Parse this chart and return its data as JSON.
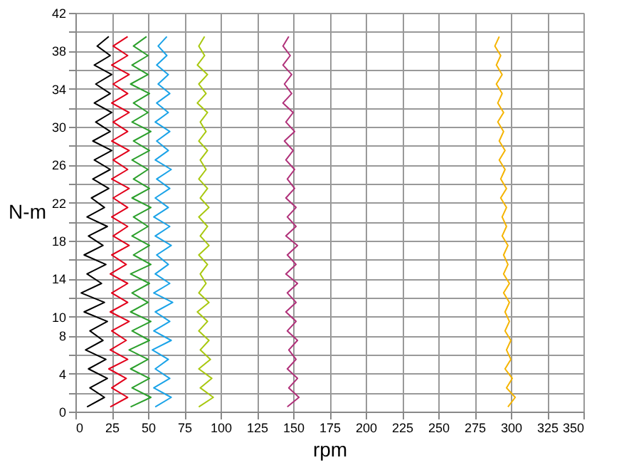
{
  "chart_data": {
    "type": "line",
    "xlabel": "rpm",
    "ylabel": "N-m",
    "xlim": [
      0,
      350
    ],
    "ylim": [
      0,
      42
    ],
    "xticks": [
      0,
      25,
      50,
      75,
      100,
      125,
      150,
      175,
      200,
      225,
      250,
      275,
      300,
      325,
      350
    ],
    "yticks": [
      0,
      {
        "value": 2,
        "label": null
      },
      4,
      {
        "value": 6,
        "label": null
      },
      8,
      10,
      {
        "value": 12,
        "label": null
      },
      14,
      {
        "value": 16,
        "label": null
      },
      18,
      {
        "value": 20,
        "label": null
      },
      22,
      {
        "value": 24,
        "label": null
      },
      26,
      {
        "value": 28,
        "label": null
      },
      30,
      {
        "value": 32,
        "label": null
      },
      34,
      {
        "value": 36,
        "label": null
      },
      38,
      {
        "value": 40,
        "label": null
      },
      42
    ],
    "grid": true,
    "legend": false,
    "marker": "none",
    "line_style": "solid",
    "series": [
      {
        "color": "#000000",
        "x": [
          8,
          20,
          10,
          22,
          9,
          21,
          7,
          19,
          10,
          22,
          6,
          20,
          4,
          18,
          8,
          21,
          6,
          19,
          9,
          22,
          8,
          20,
          11,
          23,
          12,
          24,
          13,
          25,
          12,
          24,
          14,
          25,
          13,
          24,
          14,
          25,
          13,
          24,
          15,
          23
        ],
        "values": [
          0.5,
          1.5,
          2.5,
          3.5,
          4.5,
          5.5,
          6.5,
          7.5,
          8.5,
          9.5,
          10.5,
          11.5,
          12.5,
          13.5,
          14.5,
          15.5,
          16.5,
          17.5,
          18.5,
          19.5,
          20.5,
          21.5,
          22.5,
          23.5,
          24.5,
          25.5,
          26.5,
          27.5,
          28.5,
          29.5,
          30.5,
          31.5,
          32.5,
          33.5,
          34.5,
          35.5,
          36.5,
          37.5,
          38.5,
          39.5
        ]
      },
      {
        "color": "#e2001a",
        "x": [
          24,
          36,
          25,
          35,
          23,
          36,
          24,
          35,
          25,
          37,
          24,
          36,
          25,
          36,
          24,
          35,
          25,
          37,
          26,
          36,
          25,
          36,
          26,
          37,
          25,
          36,
          26,
          37,
          25,
          36,
          26,
          37,
          25,
          36,
          26,
          37,
          25,
          36,
          26,
          36
        ],
        "values": [
          0.5,
          1.5,
          2.5,
          3.5,
          4.5,
          5.5,
          6.5,
          7.5,
          8.5,
          9.5,
          10.5,
          11.5,
          12.5,
          13.5,
          14.5,
          15.5,
          16.5,
          17.5,
          18.5,
          19.5,
          20.5,
          21.5,
          22.5,
          23.5,
          24.5,
          25.5,
          26.5,
          27.5,
          28.5,
          29.5,
          30.5,
          31.5,
          32.5,
          33.5,
          34.5,
          35.5,
          36.5,
          37.5,
          38.5,
          39.5
        ]
      },
      {
        "color": "#2ca02c",
        "x": [
          38,
          52,
          39,
          51,
          38,
          50,
          37,
          51,
          39,
          52,
          38,
          50,
          39,
          51,
          38,
          52,
          40,
          51,
          39,
          50,
          40,
          52,
          39,
          51,
          40,
          50,
          39,
          51,
          40,
          52,
          39,
          50,
          40,
          51,
          38,
          50,
          39,
          50,
          40,
          49
        ],
        "values": [
          0.5,
          1.5,
          2.5,
          3.5,
          4.5,
          5.5,
          6.5,
          7.5,
          8.5,
          9.5,
          10.5,
          11.5,
          12.5,
          13.5,
          14.5,
          15.5,
          16.5,
          17.5,
          18.5,
          19.5,
          20.5,
          21.5,
          22.5,
          23.5,
          24.5,
          25.5,
          26.5,
          27.5,
          28.5,
          29.5,
          30.5,
          31.5,
          32.5,
          33.5,
          34.5,
          35.5,
          36.5,
          37.5,
          38.5,
          39.5
        ]
      },
      {
        "color": "#1aa3e8",
        "x": [
          55,
          66,
          54,
          65,
          55,
          64,
          53,
          66,
          54,
          65,
          55,
          67,
          54,
          65,
          55,
          64,
          56,
          66,
          55,
          65,
          54,
          64,
          55,
          65,
          56,
          66,
          55,
          64,
          56,
          65,
          55,
          64,
          56,
          65,
          57,
          64,
          56,
          63,
          57,
          63
        ],
        "values": [
          0.5,
          1.5,
          2.5,
          3.5,
          4.5,
          5.5,
          6.5,
          7.5,
          8.5,
          9.5,
          10.5,
          11.5,
          12.5,
          13.5,
          14.5,
          15.5,
          16.5,
          17.5,
          18.5,
          19.5,
          20.5,
          21.5,
          22.5,
          23.5,
          24.5,
          25.5,
          26.5,
          27.5,
          28.5,
          29.5,
          30.5,
          31.5,
          32.5,
          33.5,
          34.5,
          35.5,
          36.5,
          37.5,
          38.5,
          39.5
        ]
      },
      {
        "color": "#a8c80f",
        "x": [
          85,
          95,
          86,
          94,
          85,
          93,
          86,
          92,
          85,
          91,
          84,
          92,
          85,
          90,
          86,
          91,
          85,
          92,
          86,
          91,
          85,
          92,
          86,
          91,
          85,
          90,
          86,
          91,
          85,
          90,
          86,
          91,
          84,
          90,
          85,
          91,
          84,
          89,
          85,
          89
        ],
        "values": [
          0.5,
          1.5,
          2.5,
          3.5,
          4.5,
          5.5,
          6.5,
          7.5,
          8.5,
          9.5,
          10.5,
          11.5,
          12.5,
          13.5,
          14.5,
          15.5,
          16.5,
          17.5,
          18.5,
          19.5,
          20.5,
          21.5,
          22.5,
          23.5,
          24.5,
          25.5,
          26.5,
          27.5,
          28.5,
          29.5,
          30.5,
          31.5,
          32.5,
          33.5,
          34.5,
          35.5,
          36.5,
          37.5,
          38.5,
          39.5
        ]
      },
      {
        "color": "#b03079",
        "x": [
          146,
          154,
          147,
          153,
          146,
          152,
          147,
          153,
          146,
          152,
          145,
          152,
          146,
          153,
          145,
          152,
          146,
          153,
          145,
          152,
          146,
          152,
          145,
          151,
          146,
          151,
          145,
          150,
          144,
          151,
          145,
          150,
          143,
          149,
          144,
          149,
          143,
          148,
          143,
          147
        ],
        "values": [
          0.5,
          1.5,
          2.5,
          3.5,
          4.5,
          5.5,
          6.5,
          7.5,
          8.5,
          9.5,
          10.5,
          11.5,
          12.5,
          13.5,
          14.5,
          15.5,
          16.5,
          17.5,
          18.5,
          19.5,
          20.5,
          21.5,
          22.5,
          23.5,
          24.5,
          25.5,
          26.5,
          27.5,
          28.5,
          29.5,
          30.5,
          31.5,
          32.5,
          33.5,
          34.5,
          35.5,
          36.5,
          37.5,
          38.5,
          39.5
        ]
      },
      {
        "color": "#f5b400",
        "x": [
          298,
          303,
          297,
          301,
          296,
          300,
          297,
          300,
          296,
          299,
          296,
          299,
          295,
          299,
          295,
          298,
          295,
          298,
          294,
          297,
          294,
          297,
          293,
          297,
          293,
          296,
          292,
          296,
          292,
          295,
          291,
          295,
          291,
          294,
          290,
          294,
          290,
          293,
          289,
          292
        ],
        "values": [
          0.5,
          1.5,
          2.5,
          3.5,
          4.5,
          5.5,
          6.5,
          7.5,
          8.5,
          9.5,
          10.5,
          11.5,
          12.5,
          13.5,
          14.5,
          15.5,
          16.5,
          17.5,
          18.5,
          19.5,
          20.5,
          21.5,
          22.5,
          23.5,
          24.5,
          25.5,
          26.5,
          27.5,
          28.5,
          29.5,
          30.5,
          31.5,
          32.5,
          33.5,
          34.5,
          35.5,
          36.5,
          37.5,
          38.5,
          39.5
        ]
      }
    ]
  }
}
